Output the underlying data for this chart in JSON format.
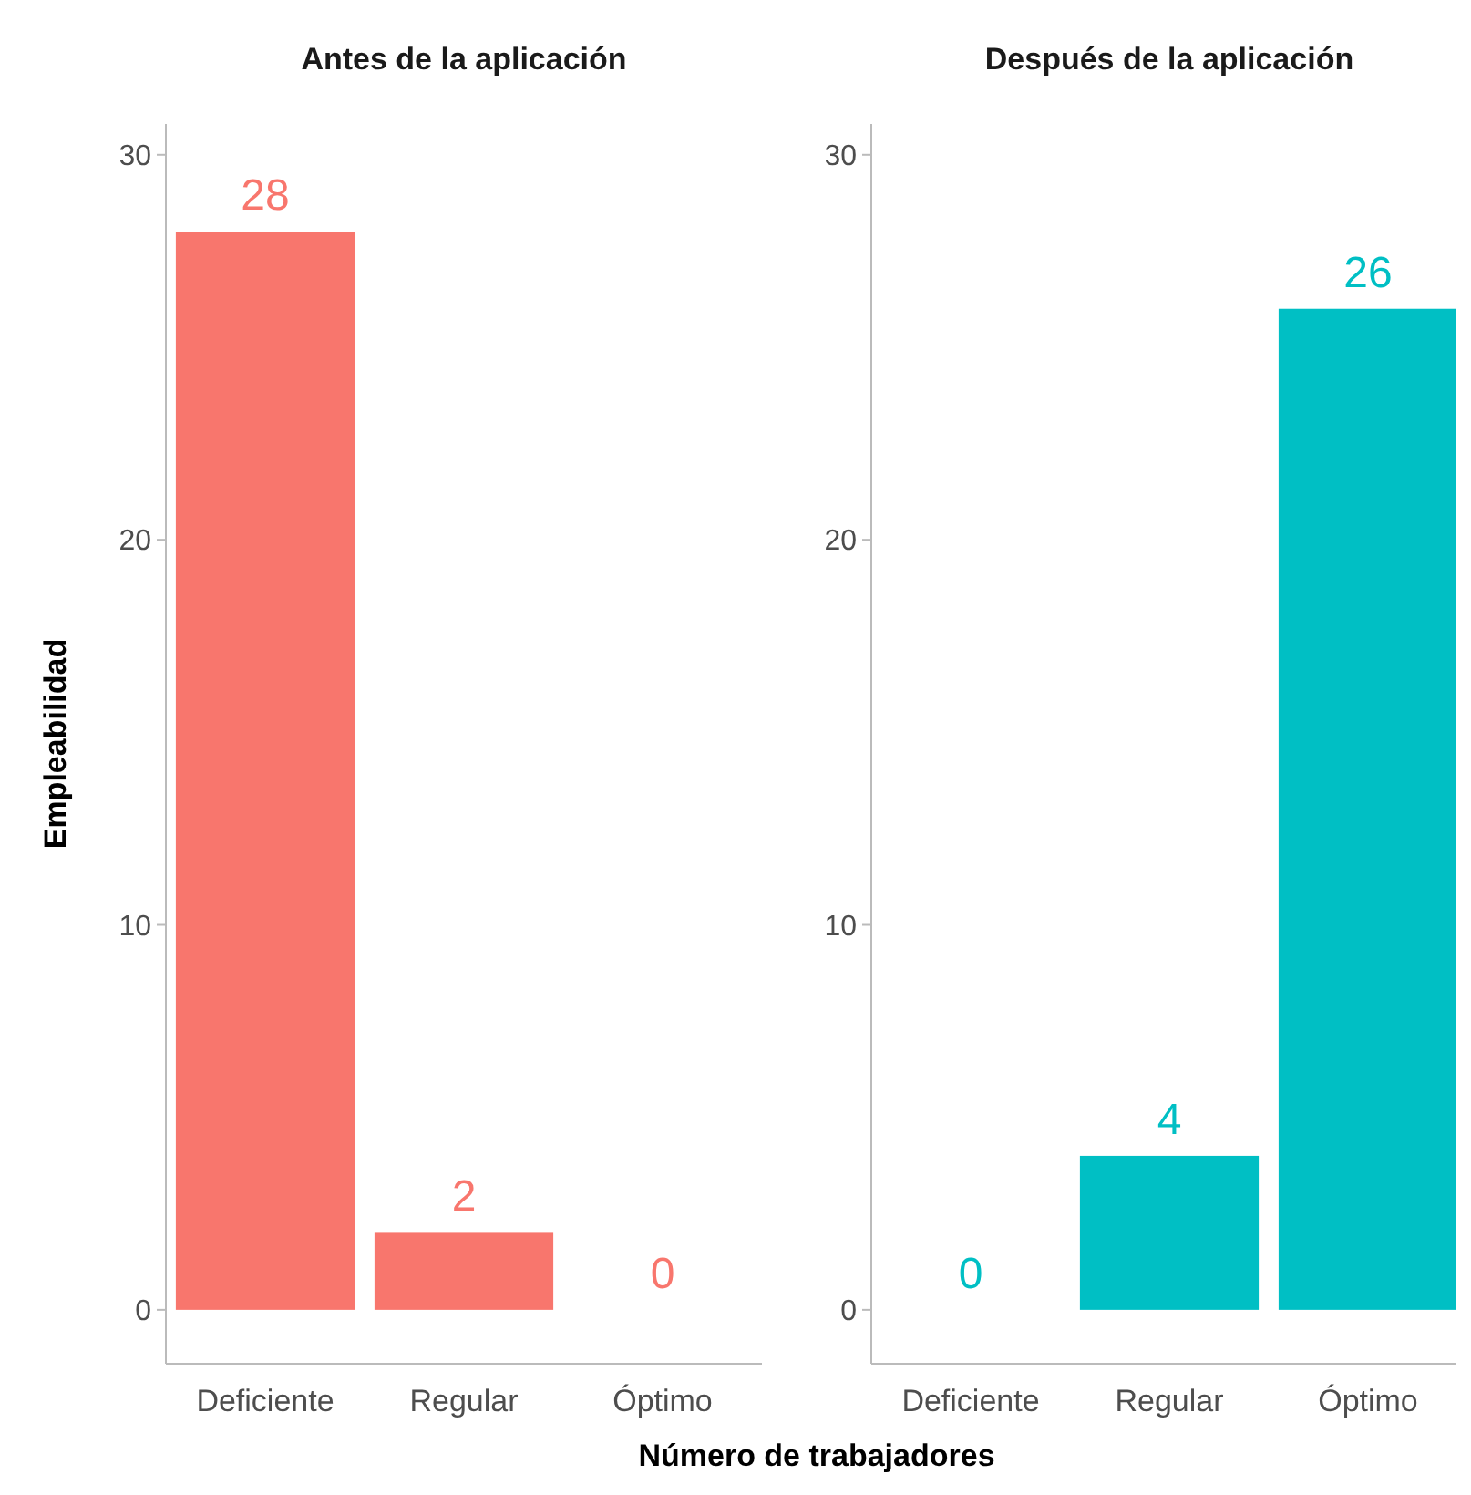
{
  "chart_data": [
    {
      "type": "bar",
      "title": "Antes de la aplicación",
      "ylabel": "Empleabilidad",
      "categories": [
        "Deficiente",
        "Regular",
        "Óptimo"
      ],
      "values": [
        28,
        2,
        0
      ],
      "color": "#f8766d",
      "ylim": [
        -1.4,
        30.8
      ],
      "yticks": [
        0,
        10,
        20,
        30
      ],
      "data_labels": true,
      "grid": false
    },
    {
      "type": "bar",
      "title": "Después de la aplicación",
      "xlabel": "Número de trabajadores",
      "categories": [
        "Deficiente",
        "Regular",
        "Óptimo"
      ],
      "values": [
        0,
        4,
        26
      ],
      "color": "#00bfc4",
      "ylim": [
        -1.4,
        30.8
      ],
      "yticks": [
        0,
        10,
        20,
        30
      ],
      "data_labels": true,
      "grid": false
    }
  ]
}
